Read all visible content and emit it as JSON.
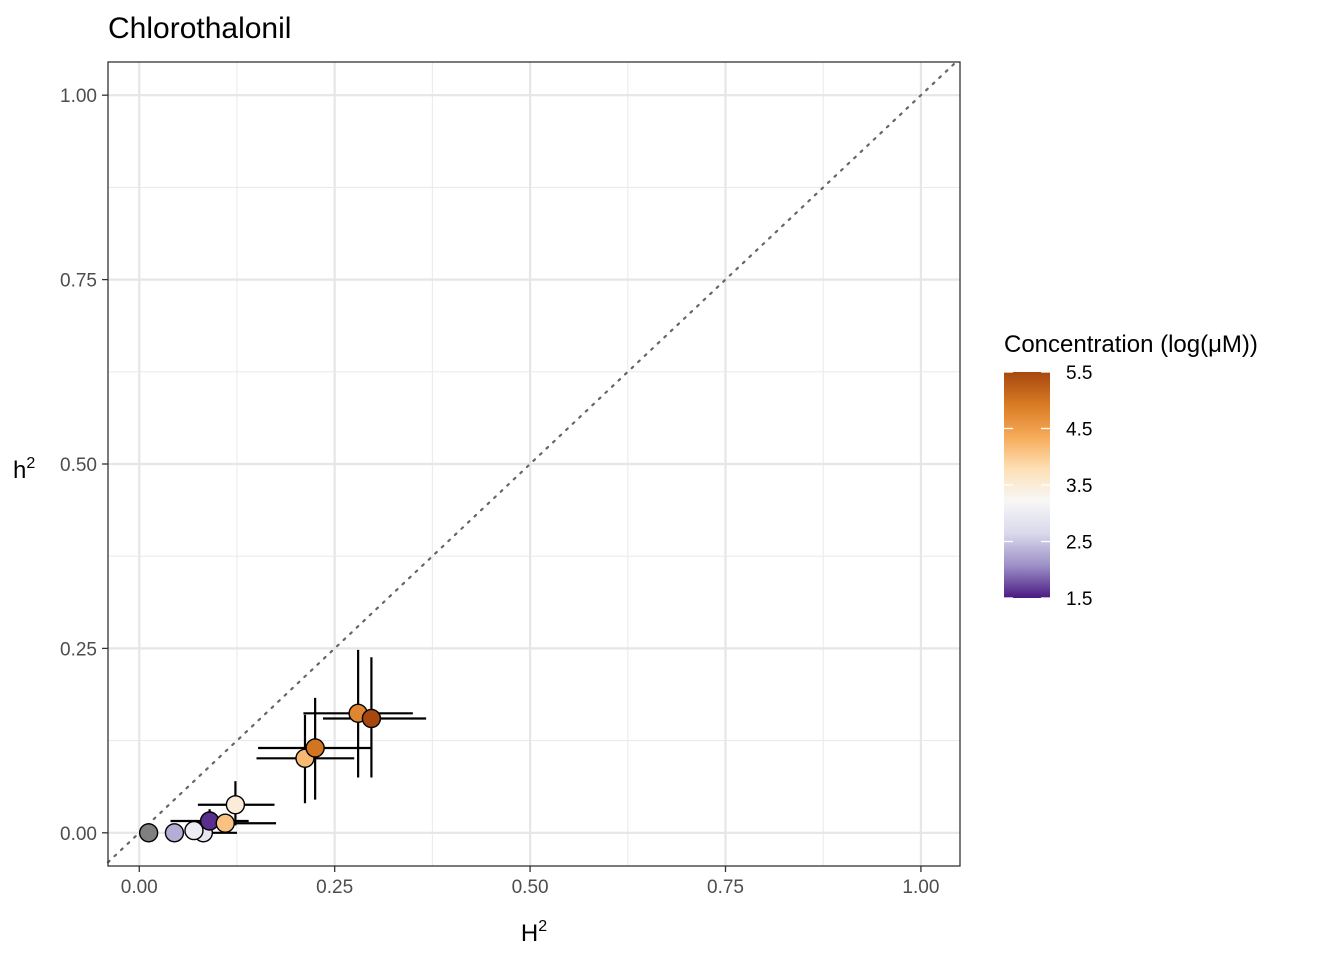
{
  "chart_data": {
    "type": "scatter",
    "title": "Chlorothalonil",
    "xlabel": "H",
    "xlabel_sup": "2",
    "ylabel": "h",
    "ylabel_sup": "2",
    "xlim": [
      -0.04,
      1.05
    ],
    "ylim": [
      -0.045,
      1.045
    ],
    "x_ticks": [
      0.0,
      0.25,
      0.5,
      0.75,
      1.0
    ],
    "x_tick_labels": [
      "0.00",
      "0.25",
      "0.50",
      "0.75",
      "1.00"
    ],
    "y_ticks": [
      0.0,
      0.25,
      0.5,
      0.75,
      1.0
    ],
    "y_tick_labels": [
      "0.00",
      "0.25",
      "0.50",
      "0.75",
      "1.00"
    ],
    "minor_ticks": [
      0.125,
      0.375,
      0.625,
      0.875
    ],
    "grid": true,
    "reference_line": {
      "slope": 1,
      "intercept": 0,
      "style": "dotted"
    },
    "legend": {
      "title": "Concentration (log(μM))",
      "position": "right",
      "ticks": [
        1.5,
        2.5,
        3.5,
        4.5,
        5.5
      ],
      "tick_labels": [
        "1.5",
        "2.5",
        "3.5",
        "4.5",
        "5.5"
      ],
      "range": [
        1.5,
        5.5
      ],
      "colors": [
        "#4a1a82",
        "#9c8fc6",
        "#d9d9ec",
        "#f7f7f7",
        "#fde0b6",
        "#f6aa58",
        "#d97a24",
        "#a6480f"
      ]
    },
    "points": [
      {
        "x": 0.012,
        "y": 0.0,
        "xlo": null,
        "xhi": null,
        "ylo": null,
        "yhi": null,
        "conc": null
      },
      {
        "x": 0.045,
        "y": 0.0,
        "xlo": null,
        "xhi": null,
        "ylo": null,
        "yhi": null,
        "conc": 2.3
      },
      {
        "x": 0.082,
        "y": 0.0,
        "xlo": 0.06,
        "xhi": 0.125,
        "ylo": null,
        "yhi": null,
        "conc": 2.9
      },
      {
        "x": 0.07,
        "y": 0.003,
        "xlo": null,
        "xhi": null,
        "ylo": null,
        "yhi": null,
        "conc": 3.0
      },
      {
        "x": 0.09,
        "y": 0.016,
        "xlo": 0.04,
        "xhi": 0.14,
        "ylo": 0.0,
        "yhi": 0.032,
        "conc": 1.6
      },
      {
        "x": 0.11,
        "y": 0.013,
        "xlo": 0.065,
        "xhi": 0.175,
        "ylo": 0.0,
        "yhi": 0.025,
        "conc": 4.1
      },
      {
        "x": 0.123,
        "y": 0.038,
        "xlo": 0.075,
        "xhi": 0.173,
        "ylo": 0.01,
        "yhi": 0.07,
        "conc": 3.5
      },
      {
        "x": 0.212,
        "y": 0.101,
        "xlo": 0.15,
        "xhi": 0.275,
        "ylo": 0.04,
        "yhi": 0.16,
        "conc": 4.2
      },
      {
        "x": 0.225,
        "y": 0.115,
        "xlo": 0.152,
        "xhi": 0.298,
        "ylo": 0.045,
        "yhi": 0.183,
        "conc": 5.0
      },
      {
        "x": 0.28,
        "y": 0.162,
        "xlo": 0.21,
        "xhi": 0.35,
        "ylo": 0.075,
        "yhi": 0.248,
        "conc": 4.8
      },
      {
        "x": 0.297,
        "y": 0.155,
        "xlo": 0.235,
        "xhi": 0.367,
        "ylo": 0.075,
        "yhi": 0.238,
        "conc": 5.5
      }
    ]
  }
}
